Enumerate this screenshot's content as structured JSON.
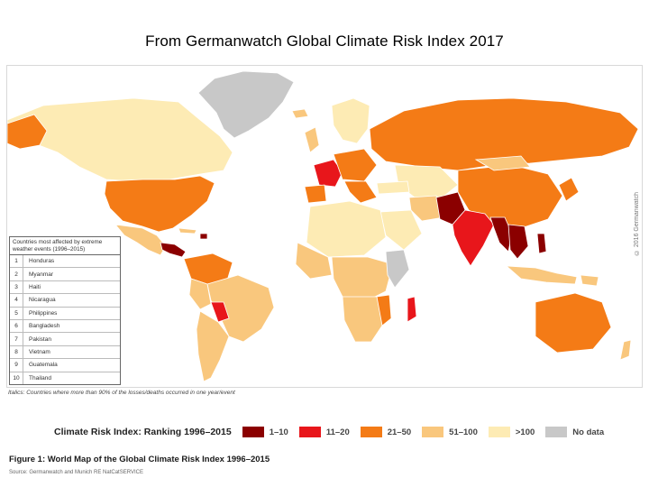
{
  "slide_title": "From Germanwatch Global Climate Risk Index 2017",
  "copyright": "© 2016 Germanwatch",
  "ranking_box": {
    "header": "Countries most affected by extreme weather events (1996–2015)",
    "rows": [
      {
        "rank": "1",
        "country": "Honduras"
      },
      {
        "rank": "2",
        "country": "Myanmar"
      },
      {
        "rank": "3",
        "country": "Haiti"
      },
      {
        "rank": "4",
        "country": "Nicaragua"
      },
      {
        "rank": "5",
        "country": "Philippines"
      },
      {
        "rank": "6",
        "country": "Bangladesh"
      },
      {
        "rank": "7",
        "country": "Pakistan"
      },
      {
        "rank": "8",
        "country": "Vietnam"
      },
      {
        "rank": "9",
        "country": "Guatemala"
      },
      {
        "rank": "10",
        "country": "Thailand"
      }
    ]
  },
  "footnote": "Italics: Countries where more than 90% of the losses/deaths occurred in one year/event",
  "legend": {
    "title": "Climate Risk Index: Ranking 1996–2015",
    "items": [
      {
        "label": "1–10",
        "color": "#8b0000"
      },
      {
        "label": "11–20",
        "color": "#e8161b"
      },
      {
        "label": "21–50",
        "color": "#f47b16"
      },
      {
        "label": "51–100",
        "color": "#f9c77d"
      },
      {
        "label": ">100",
        "color": "#fdebb4"
      },
      {
        "label": "No data",
        "color": "#c8c8c8"
      }
    ]
  },
  "figure_caption": "Figure 1: World Map of the Global Climate Risk Index 1996–2015",
  "source": "Source: Germanwatch and Munich RE NatCatSERVICE",
  "colors": {
    "rank_1_10": "#8b0000",
    "rank_11_20": "#e8161b",
    "rank_21_50": "#f47b16",
    "rank_51_100": "#f9c77d",
    "rank_over_100": "#fdebb4",
    "no_data": "#c8c8c8",
    "ocean": "#ffffff"
  }
}
